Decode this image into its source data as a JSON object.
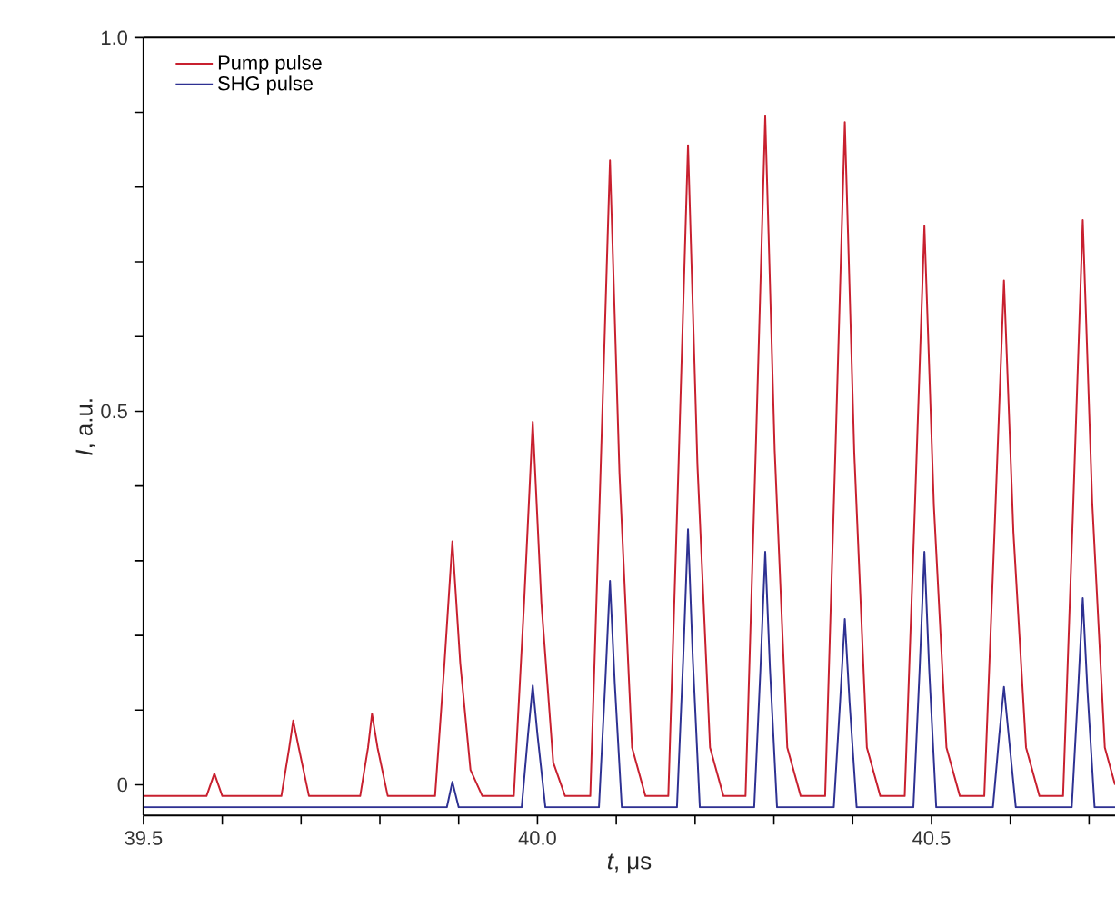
{
  "chart_data": {
    "type": "line",
    "xlabel": "*t*, μs",
    "ylabel": "*I*, a.u.",
    "xlim": [
      39.5,
      40.733
    ],
    "ylim": [
      -0.041,
      1.0
    ],
    "xticks": [
      39.5,
      {
        "value": 39.6,
        "label": null
      },
      {
        "value": 39.7,
        "label": null
      },
      {
        "value": 39.8,
        "label": null
      },
      {
        "value": 39.9,
        "label": null
      },
      {
        "value": 40.0,
        "label": "40.0"
      },
      {
        "value": 40.1,
        "label": null
      },
      {
        "value": 40.2,
        "label": null
      },
      {
        "value": 40.3,
        "label": null
      },
      {
        "value": 40.4,
        "label": null
      },
      40.5,
      {
        "value": 40.6,
        "label": null
      },
      {
        "value": 40.7,
        "label": null
      }
    ],
    "yticks": [
      0,
      {
        "value": 0.1,
        "label": null
      },
      {
        "value": 0.2,
        "label": null
      },
      {
        "value": 0.3,
        "label": null
      },
      {
        "value": 0.4,
        "label": null
      },
      0.5,
      {
        "value": 0.6,
        "label": null
      },
      {
        "value": 0.7,
        "label": null
      },
      {
        "value": 0.8,
        "label": null
      },
      {
        "value": 0.9,
        "label": null
      },
      {
        "value": 1.0,
        "label": "1.0"
      }
    ],
    "legend": "top left",
    "marker": "none",
    "series": [
      {
        "name": "Pump pulse",
        "color": "#c8202f",
        "x": [
          39.5,
          39.58,
          39.59,
          39.6,
          39.675,
          39.685,
          39.69,
          39.697,
          39.71,
          39.775,
          39.785,
          39.79,
          39.797,
          39.81,
          39.87,
          39.882,
          39.892,
          39.902,
          39.915,
          39.93,
          39.97,
          39.983,
          39.994,
          40.005,
          40.02,
          40.035,
          40.067,
          40.08,
          40.092,
          40.104,
          40.12,
          40.137,
          40.166,
          40.179,
          40.191,
          40.203,
          40.219,
          40.236,
          40.264,
          40.277,
          40.289,
          40.301,
          40.317,
          40.334,
          40.365,
          40.378,
          40.39,
          40.402,
          40.418,
          40.435,
          40.466,
          40.479,
          40.491,
          40.503,
          40.519,
          40.536,
          40.567,
          40.58,
          40.592,
          40.604,
          40.62,
          40.637,
          40.667,
          40.68,
          40.692,
          40.704,
          40.72,
          40.733
        ],
        "values": [
          -0.015,
          -0.015,
          0.015,
          -0.015,
          -0.015,
          0.05,
          0.086,
          0.05,
          -0.015,
          -0.015,
          0.05,
          0.095,
          0.05,
          -0.015,
          -0.015,
          0.163,
          0.326,
          0.163,
          0.02,
          -0.015,
          -0.015,
          0.243,
          0.486,
          0.243,
          0.03,
          -0.015,
          -0.015,
          0.418,
          0.836,
          0.418,
          0.05,
          -0.015,
          -0.015,
          0.428,
          0.856,
          0.428,
          0.05,
          -0.015,
          -0.015,
          0.448,
          0.895,
          0.448,
          0.05,
          -0.015,
          -0.015,
          0.444,
          0.887,
          0.444,
          0.05,
          -0.015,
          -0.015,
          0.374,
          0.748,
          0.374,
          0.05,
          -0.015,
          -0.015,
          0.338,
          0.675,
          0.338,
          0.05,
          -0.015,
          -0.015,
          0.378,
          0.756,
          0.378,
          0.05,
          0.0
        ]
      },
      {
        "name": "SHG pulse",
        "color": "#2e3192",
        "x": [
          39.5,
          39.885,
          39.892,
          39.9,
          39.98,
          39.988,
          39.994,
          40.0,
          40.01,
          40.078,
          40.086,
          40.092,
          40.098,
          40.107,
          40.177,
          40.185,
          40.191,
          40.197,
          40.206,
          40.275,
          40.283,
          40.289,
          40.295,
          40.304,
          40.376,
          40.384,
          40.39,
          40.396,
          40.405,
          40.477,
          40.485,
          40.491,
          40.497,
          40.506,
          40.578,
          40.586,
          40.592,
          40.598,
          40.607,
          40.678,
          40.686,
          40.692,
          40.698,
          40.707,
          40.733
        ],
        "values": [
          -0.03,
          -0.03,
          0.004,
          -0.03,
          -0.03,
          0.067,
          0.133,
          0.067,
          -0.03,
          -0.03,
          0.137,
          0.273,
          0.137,
          -0.03,
          -0.03,
          0.171,
          0.342,
          0.171,
          -0.03,
          -0.03,
          0.156,
          0.312,
          0.156,
          -0.03,
          -0.03,
          0.111,
          0.222,
          0.111,
          -0.03,
          -0.03,
          0.156,
          0.312,
          0.156,
          -0.03,
          -0.03,
          0.066,
          0.131,
          0.066,
          -0.03,
          -0.03,
          0.125,
          0.25,
          0.125,
          -0.03,
          -0.03
        ]
      }
    ]
  }
}
